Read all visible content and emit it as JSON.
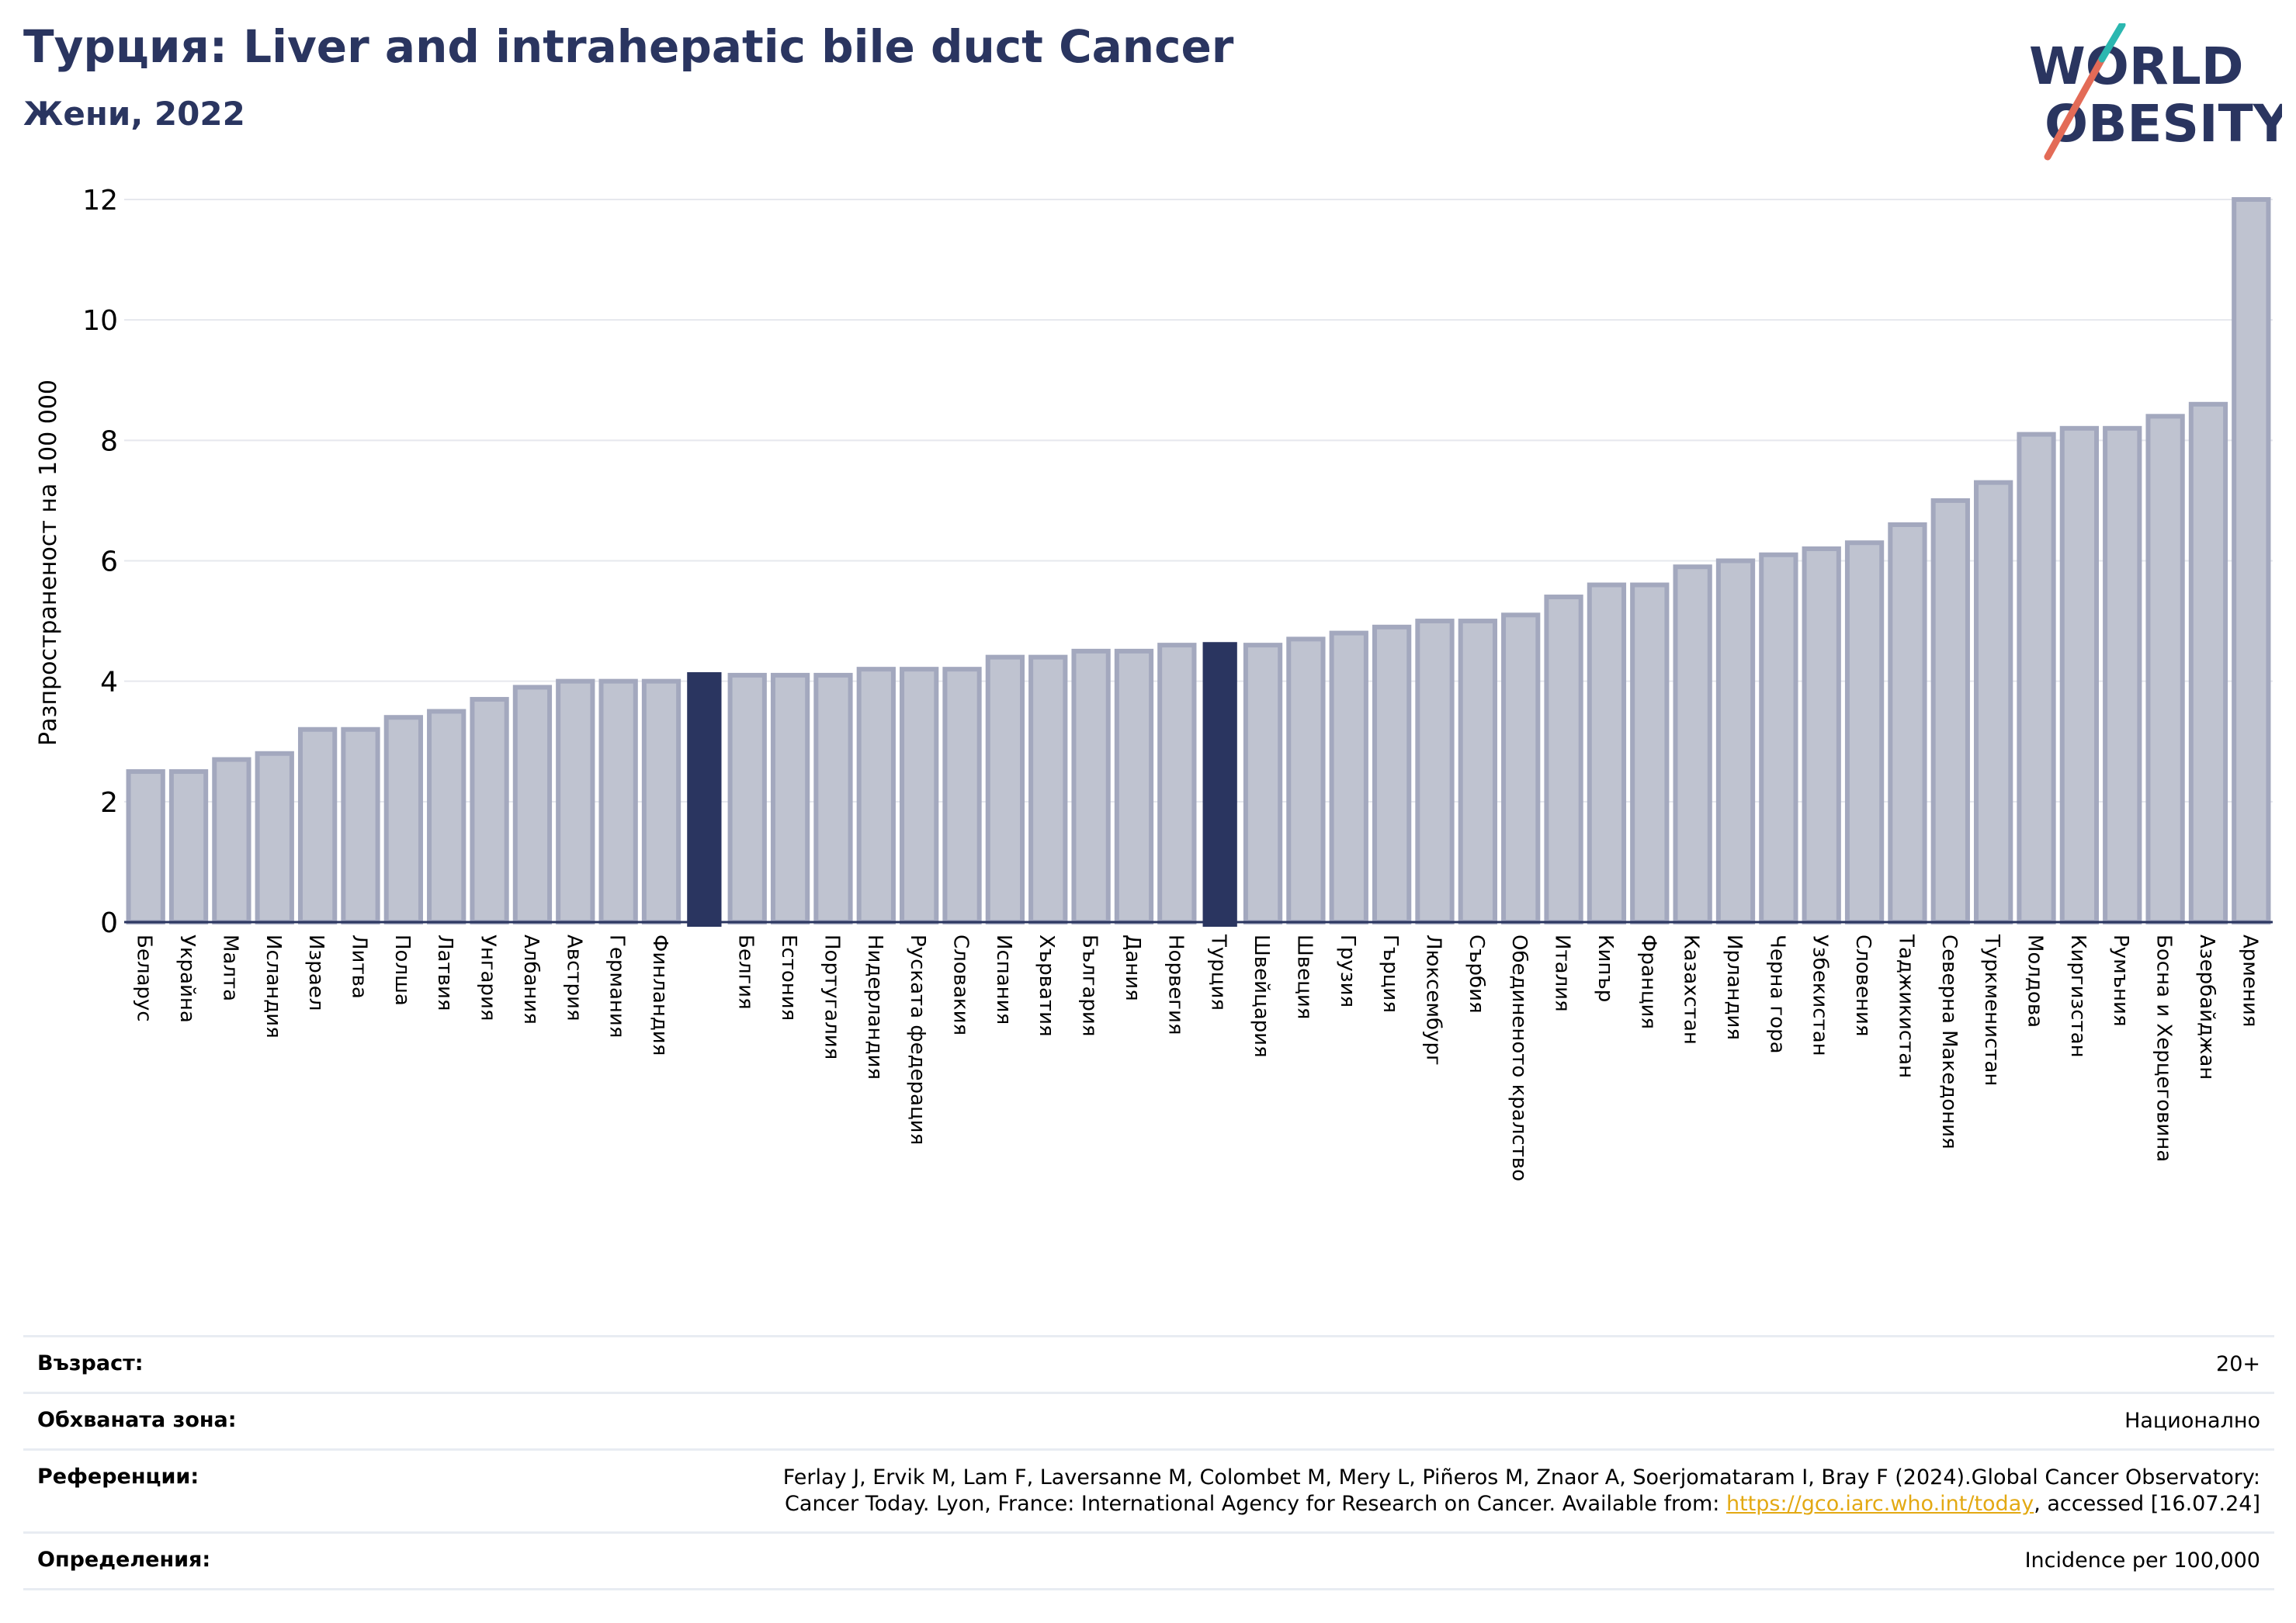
{
  "title": "Турция: Liver and intrahepatic bile duct Cancer",
  "subtitle": "Жени, 2022",
  "logo": {
    "line1": "WORLD",
    "line2": "OBESITY"
  },
  "chart_data": {
    "type": "bar",
    "ylabel": "Разпространеност  на 100 000",
    "ylim": [
      0,
      12
    ],
    "yticks": [
      0,
      2,
      4,
      6,
      8,
      10,
      12
    ],
    "grid": true,
    "highlight_color": "#2a3560",
    "bar_color": "#bfc3d0",
    "bar_edge_color": "#a3a8be",
    "categories": [
      "Беларус",
      "Украйна",
      "Малта",
      "Исландия",
      "Израел",
      "Литва",
      "Полша",
      "Латвия",
      "Унгария",
      "Албания",
      "Австрия",
      "Германия",
      "Финландия",
      "",
      "Белгия",
      "Естония",
      "Португалия",
      "Нидерландия",
      "Руската федерация",
      "Словакия",
      "Испания",
      "Хърватия",
      "България",
      "Дания",
      "Норвегия",
      "Турция",
      "Швейцария",
      "Швеция",
      "Грузия",
      "Гърция",
      "Люксембург",
      "Сърбия",
      "Обединеното кралство",
      "Италия",
      "Кипър",
      "Франция",
      "Казахстан",
      "Ирландия",
      "Черна гора",
      "Узбекистан",
      "Словения",
      "Таджикистан",
      "Северна Македония",
      "Туркменистан",
      "Молдова",
      "Киргизстан",
      "Румъния",
      "Босна и Херцеговина",
      "Азербайджан",
      "Армения"
    ],
    "values": [
      2.5,
      2.5,
      2.7,
      2.8,
      3.2,
      3.2,
      3.4,
      3.5,
      3.7,
      3.9,
      4.0,
      4.0,
      4.0,
      4.15,
      4.1,
      4.1,
      4.1,
      4.2,
      4.2,
      4.2,
      4.4,
      4.4,
      4.5,
      4.5,
      4.6,
      4.65,
      4.6,
      4.7,
      4.8,
      4.9,
      5.0,
      5.0,
      5.1,
      5.4,
      5.6,
      5.6,
      5.9,
      6.0,
      6.1,
      6.2,
      6.3,
      6.6,
      7.0,
      7.3,
      8.1,
      8.2,
      8.2,
      8.4,
      8.6,
      12.0
    ],
    "highlighted": [
      13,
      25
    ]
  },
  "info": [
    {
      "label": "Възраст:",
      "value": "20+"
    },
    {
      "label": "Обхваната зона:",
      "value": "Национално"
    },
    {
      "label": "Референции:",
      "value_line1": "Ferlay J, Ervik M, Lam F, Laversanne M, Colombet M, Mery L, Piñeros M, Znaor A, Soerjomataram I, Bray F (2024).Global Cancer Observatory:",
      "value_line2_pre": "Cancer Today. Lyon, France: International Agency for Research on Cancer. Available from: ",
      "link": "https://gco.iarc.who.int/today",
      "value_line2_post": ", accessed [16.07.24]"
    },
    {
      "label": "Определения:",
      "value": "Incidence per 100,000"
    }
  ]
}
